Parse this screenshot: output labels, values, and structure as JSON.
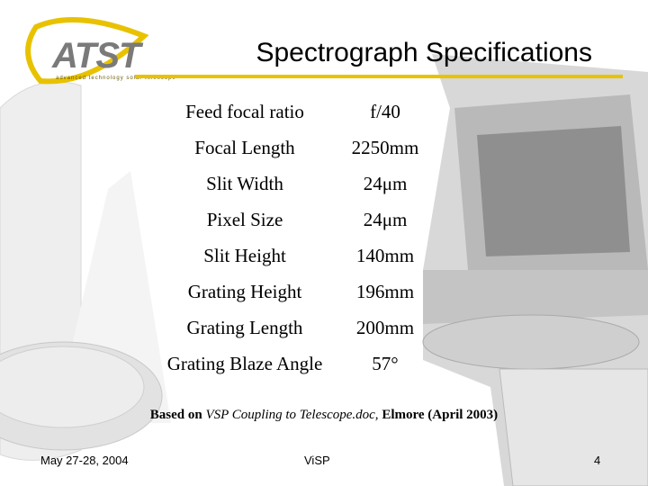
{
  "logo": {
    "text": "ATST",
    "tagline": "advanced technology solar telescope"
  },
  "header": {
    "title": "Spectrograph Specifications"
  },
  "table": {
    "rows": [
      [
        "Feed focal ratio",
        "f/40"
      ],
      [
        "Focal Length",
        "2250mm"
      ],
      [
        "Slit Width",
        "24μm"
      ],
      [
        "Pixel Size",
        "24μm"
      ],
      [
        "Slit Height",
        "140mm"
      ],
      [
        "Grating Height",
        "196mm"
      ],
      [
        "Grating Length",
        "200mm"
      ],
      [
        "Grating Blaze Angle",
        "57°"
      ]
    ]
  },
  "note": {
    "prefix": "Based on",
    "document": "VSP Coupling to Telescope.doc,",
    "suffix": "Elmore (April 2003)"
  },
  "footer": {
    "date": "May 27-28, 2004",
    "center": "ViSP",
    "page": "4"
  }
}
